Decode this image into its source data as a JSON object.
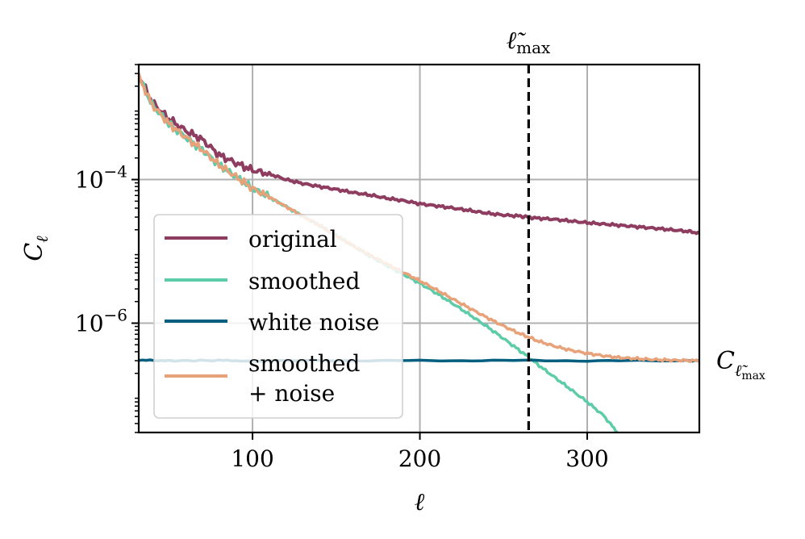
{
  "chart_data": {
    "type": "line",
    "title": "",
    "xlabel": "ℓ",
    "ylabel": "C",
    "ylabel_subscript": "ℓ",
    "xscale": "linear",
    "yscale": "log",
    "xlim": [
      32,
      367
    ],
    "ylim": [
      3e-08,
      0.004
    ],
    "x_ticks": [
      100,
      200,
      300
    ],
    "x_tick_labels": [
      "100",
      "200",
      "300"
    ],
    "y_ticks": [
      0.0001,
      1e-06
    ],
    "y_tick_labels": [
      {
        "base": "10",
        "exp": "−4"
      },
      {
        "base": "10",
        "exp": "−6"
      }
    ],
    "grid": true,
    "legend_location": "lower-left",
    "vline": {
      "x": 265,
      "style": "dashed",
      "color": "#000000",
      "label": "ℓ̃",
      "label_subscript": "max"
    },
    "right_annotation": {
      "text": "C",
      "subscript": "ℓ̃",
      "subsubscript": "max",
      "y": 3e-07
    },
    "series": [
      {
        "name": "original",
        "legend_label": "original",
        "color": "#8e3d60",
        "x": [
          32,
          40,
          50,
          60,
          70,
          80,
          90,
          100,
          110,
          120,
          130,
          140,
          150,
          160,
          170,
          180,
          190,
          200,
          210,
          220,
          230,
          240,
          250,
          260,
          265,
          270,
          280,
          290,
          300,
          310,
          320,
          330,
          340,
          350,
          360,
          367
        ],
        "y": [
          0.0028,
          0.0012,
          0.0007,
          0.00048,
          0.00036,
          0.00022,
          0.00017,
          0.000135,
          0.00012,
          0.0001,
          8.8e-05,
          8e-05,
          7.3e-05,
          6.6e-05,
          6.1e-05,
          5.5e-05,
          5.1e-05,
          4.6e-05,
          4.3e-05,
          4e-05,
          3.7e-05,
          3.4e-05,
          3.2e-05,
          3.1e-05,
          3e-05,
          2.9e-05,
          2.8e-05,
          2.65e-05,
          2.5e-05,
          2.4e-05,
          2.3e-05,
          2.2e-05,
          2.1e-05,
          2e-05,
          1.9e-05,
          1.8e-05
        ]
      },
      {
        "name": "smoothed",
        "legend_label": "smoothed",
        "color": "#5ecca8",
        "x": [
          32,
          40,
          50,
          60,
          70,
          80,
          90,
          100,
          110,
          120,
          130,
          140,
          150,
          160,
          170,
          180,
          190,
          200,
          210,
          220,
          230,
          240,
          250,
          260,
          265,
          270,
          280,
          290,
          300,
          310,
          318
        ],
        "y": [
          0.0027,
          0.0011,
          0.0006,
          0.00039,
          0.00026,
          0.00016,
          0.00011,
          7.5e-05,
          5.7e-05,
          4.2e-05,
          3.1e-05,
          2.3e-05,
          1.65e-05,
          1.2e-05,
          8.6e-06,
          6.4e-06,
          4.8e-06,
          3.6e-06,
          2.6e-06,
          1.85e-06,
          1.3e-06,
          9e-07,
          6.1e-07,
          4.1e-07,
          3.35e-07,
          2.7e-07,
          1.8e-07,
          1.2e-07,
          8e-08,
          5.1e-08,
          3e-08
        ]
      },
      {
        "name": "white noise",
        "legend_label": "white noise",
        "color": "#005f7f",
        "x": [
          32,
          50,
          80,
          100,
          150,
          200,
          250,
          300,
          350,
          367
        ],
        "y": [
          3.05e-07,
          3e-07,
          3.02e-07,
          2.98e-07,
          3.01e-07,
          3e-07,
          3.02e-07,
          2.99e-07,
          3e-07,
          3.01e-07
        ]
      },
      {
        "name": "smoothed + noise",
        "legend_label_lines": [
          "smoothed",
          "+ noise"
        ],
        "color": "#e8a27a",
        "x": [
          32,
          40,
          50,
          60,
          70,
          80,
          90,
          100,
          110,
          120,
          130,
          140,
          150,
          160,
          170,
          180,
          190,
          200,
          210,
          220,
          230,
          240,
          250,
          260,
          265,
          270,
          280,
          290,
          300,
          310,
          320,
          330,
          340,
          350,
          360,
          367
        ],
        "y": [
          0.0027,
          0.0011,
          0.0006,
          0.00039,
          0.00026,
          0.00016,
          0.00011,
          7.5e-05,
          5.7e-05,
          4.2e-05,
          3.1e-05,
          2.3e-05,
          1.65e-05,
          1.2e-05,
          8.9e-06,
          6.7e-06,
          5.1e-06,
          3.9e-06,
          2.9e-06,
          2.15e-06,
          1.6e-06,
          1.2e-06,
          9.1e-07,
          7.1e-07,
          6.4e-07,
          5.7e-07,
          4.8e-07,
          4.2e-07,
          3.8e-07,
          3.5e-07,
          3.3e-07,
          3.2e-07,
          3.1e-07,
          3.05e-07,
          3.02e-07,
          3e-07
        ]
      }
    ]
  }
}
